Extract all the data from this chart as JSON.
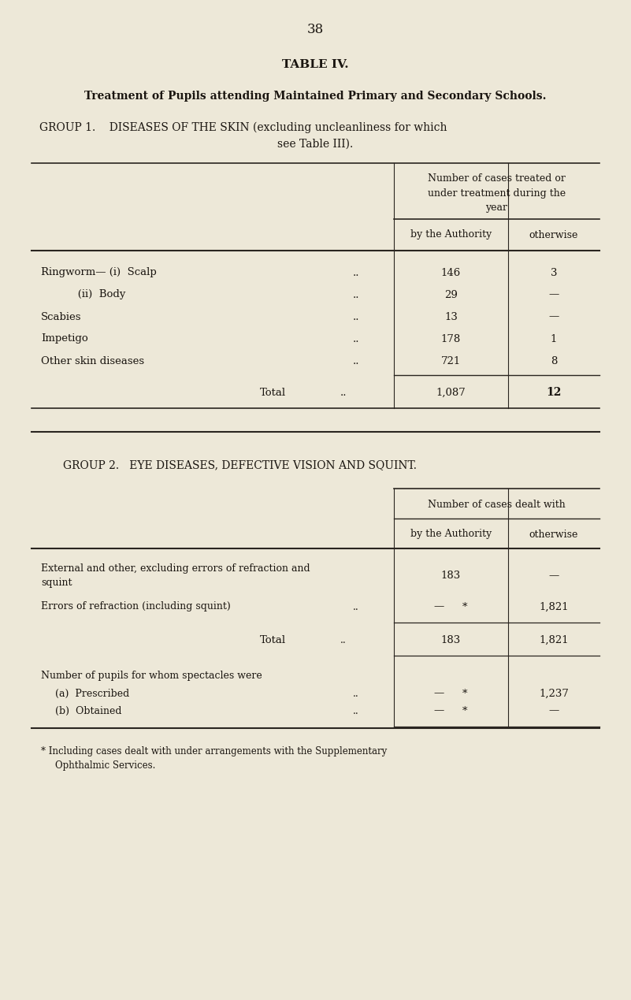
{
  "bg_color": "#ede8d8",
  "text_color": "#1a1510",
  "page_number": "38",
  "table_title": "TABLE IV.",
  "subtitle": "Treatment of Pupils attending Maintained Primary and Secondary Schools.",
  "group1_heading_line1": "GROUP 1.    DISEASES OF THE SKIN (excluding uncleanliness for which",
  "group1_heading_line2": "see Table III).",
  "group1_col_header_merged_lines": [
    "Number of cases treated or",
    "under treatment during the",
    "year"
  ],
  "group1_col1": "by the Authority",
  "group1_col2": "otherwise",
  "group1_rows": [
    {
      "label": "Ringworm— (i)  Scalp",
      "dots": "..",
      "col1": "146",
      "col2": "3"
    },
    {
      "label": "           (ii)  Body",
      "dots": "..",
      "col1": "29",
      "col2": "—"
    },
    {
      "label": "Scabies",
      "dots": "..",
      "col1": "13",
      "col2": "—"
    },
    {
      "label": "Impetigo",
      "dots": "..",
      "col1": "178",
      "col2": "1"
    },
    {
      "label": "Other skin diseases",
      "dots": "..",
      "col1": "721",
      "col2": "8"
    }
  ],
  "group1_total_label": "Total",
  "group1_total_dots": "..",
  "group1_total_col1": "1,087",
  "group1_total_col2": "12",
  "group2_heading": "GROUP 2.   EYE DISEASES, DEFECTIVE VISION AND SQUINT.",
  "group2_col_header_merged": "Number of cases dealt with",
  "group2_col1": "by the Authority",
  "group2_col2": "otherwise",
  "group2_row1_line1": "External and other, excluding errors of refraction and",
  "group2_row1_line2": "squint",
  "group2_row1_col1": "183",
  "group2_row1_col2": "—",
  "group2_row2_label": "Errors of refraction (including squint)",
  "group2_row2_dots": "..",
  "group2_row2_col1": "—",
  "group2_row2_star": "*",
  "group2_row2_col2": "1,821",
  "group2_total_label": "Total",
  "group2_total_dots": "..",
  "group2_total_col1": "183",
  "group2_total_col2": "1,821",
  "group2_spectacles_header": "Number of pupils for whom spectacles were",
  "group2_spec_row1_label": "    (a)  Prescribed",
  "group2_spec_row1_dots": "..",
  "group2_spec_row1_col1": "—",
  "group2_spec_row1_star": "*",
  "group2_spec_row1_col2": "1,237",
  "group2_spec_row2_label": "    (b)  Obtained",
  "group2_spec_row2_dots": "..",
  "group2_spec_row2_col1": "—",
  "group2_spec_row2_star": "*",
  "group2_spec_row2_col2": "—",
  "footnote_line1": "* Including cases dealt with under arrangements with the Supplementary",
  "footnote_line2": "    Ophthalmic Services."
}
